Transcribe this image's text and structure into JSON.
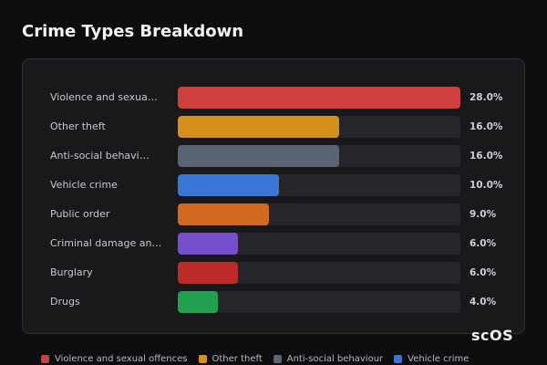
{
  "chart_data": {
    "type": "bar",
    "orientation": "horizontal",
    "title": "Crime Types Breakdown",
    "categories": [
      "Violence and sexua…",
      "Other theft",
      "Anti-social behavi…",
      "Vehicle crime",
      "Public order",
      "Criminal damage an…",
      "Burglary",
      "Drugs"
    ],
    "values": [
      28,
      16,
      16,
      10,
      9,
      6,
      6,
      4
    ],
    "value_labels": [
      "28.0%",
      "16.0%",
      "16.0%",
      "10.0%",
      "9.0%",
      "6.0%",
      "6.0%",
      "4.0%"
    ],
    "colors": [
      "#cf3f3f",
      "#d4901a",
      "#5b6474",
      "#3a76d6",
      "#d2691e",
      "#7650cc",
      "#bd2a2a",
      "#22a04f"
    ],
    "xlim": [
      0,
      28
    ],
    "legend": [
      {
        "name": "Violence and sexual offences",
        "color": "#cf3f3f"
      },
      {
        "name": "Other theft",
        "color": "#d4901a"
      },
      {
        "name": "Anti-social behaviour",
        "color": "#5b6474"
      },
      {
        "name": "Vehicle crime",
        "color": "#3a76d6"
      }
    ]
  },
  "watermark": "scOS"
}
